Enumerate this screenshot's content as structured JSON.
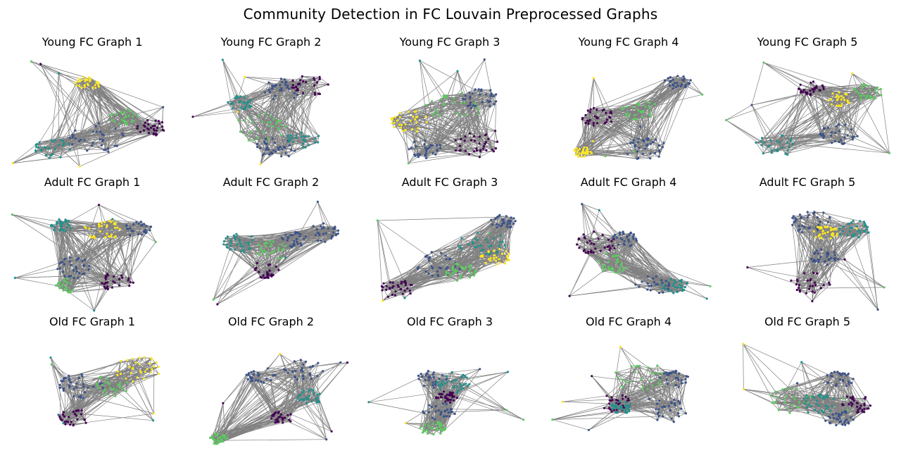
{
  "suptitle": "Community Detection in FC Louvain Preprocessed Graphs",
  "colors": {
    "edge": "#808080",
    "communities": [
      "#440154",
      "#3b528b",
      "#21918c",
      "#5ec962",
      "#fde725"
    ]
  },
  "panels": [
    {
      "title": "Young FC Graph 1"
    },
    {
      "title": "Young FC Graph 2"
    },
    {
      "title": "Young FC Graph 3"
    },
    {
      "title": "Young FC Graph 4"
    },
    {
      "title": "Young FC Graph 5"
    },
    {
      "title": "Adult FC Graph 1"
    },
    {
      "title": "Adult FC Graph 2"
    },
    {
      "title": "Adult FC Graph 3"
    },
    {
      "title": "Adult FC Graph 4"
    },
    {
      "title": "Adult FC Graph 5"
    },
    {
      "title": "Old FC Graph 1"
    },
    {
      "title": "Old FC Graph 2"
    },
    {
      "title": "Old FC Graph 3"
    },
    {
      "title": "Old FC Graph 4"
    },
    {
      "title": "Old FC Graph 5"
    }
  ]
}
